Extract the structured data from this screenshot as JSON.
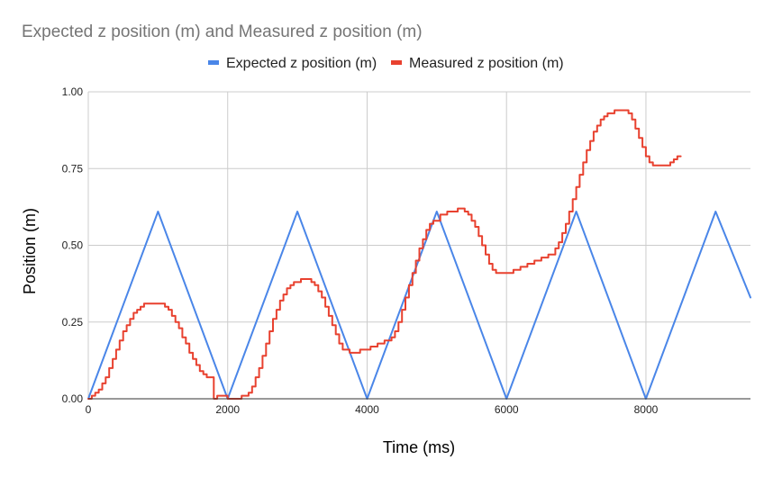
{
  "chart_data": {
    "type": "line",
    "title": "Expected z position (m) and Measured z position (m)",
    "xlabel": "Time (ms)",
    "ylabel": "Position (m)",
    "xlim": [
      0,
      9500
    ],
    "ylim": [
      0,
      1
    ],
    "x_ticks": [
      "0",
      "2000",
      "4000",
      "6000",
      "8000"
    ],
    "y_ticks": [
      "0.00",
      "0.25",
      "0.50",
      "0.75",
      "1.00"
    ],
    "grid": true,
    "legend_position": "top",
    "series": [
      {
        "name": "Expected z position (m)",
        "color": "#4a86e8",
        "step": false,
        "points": [
          [
            0,
            0
          ],
          [
            1000,
            0.61
          ],
          [
            2000,
            0
          ],
          [
            3000,
            0.61
          ],
          [
            4000,
            0
          ],
          [
            5000,
            0.61
          ],
          [
            6000,
            0
          ],
          [
            7000,
            0.61
          ],
          [
            8000,
            0
          ],
          [
            9000,
            0.61
          ],
          [
            9500,
            0.33
          ]
        ]
      },
      {
        "name": "Measured z position (m)",
        "color": "#e8412f",
        "step": true,
        "points": [
          [
            0,
            0.0
          ],
          [
            50,
            0.01
          ],
          [
            100,
            0.02
          ],
          [
            150,
            0.03
          ],
          [
            200,
            0.05
          ],
          [
            250,
            0.07
          ],
          [
            300,
            0.1
          ],
          [
            350,
            0.13
          ],
          [
            400,
            0.16
          ],
          [
            450,
            0.19
          ],
          [
            500,
            0.22
          ],
          [
            550,
            0.24
          ],
          [
            600,
            0.26
          ],
          [
            650,
            0.28
          ],
          [
            700,
            0.29
          ],
          [
            750,
            0.3
          ],
          [
            800,
            0.31
          ],
          [
            1050,
            0.31
          ],
          [
            1100,
            0.3
          ],
          [
            1150,
            0.29
          ],
          [
            1200,
            0.27
          ],
          [
            1250,
            0.25
          ],
          [
            1300,
            0.23
          ],
          [
            1350,
            0.2
          ],
          [
            1400,
            0.18
          ],
          [
            1450,
            0.15
          ],
          [
            1500,
            0.13
          ],
          [
            1550,
            0.11
          ],
          [
            1600,
            0.09
          ],
          [
            1650,
            0.08
          ],
          [
            1700,
            0.07
          ],
          [
            1800,
            0.07
          ],
          [
            1800,
            0.0
          ],
          [
            1850,
            0.01
          ],
          [
            1950,
            0.01
          ],
          [
            2000,
            0.0
          ],
          [
            2200,
            0.0
          ],
          [
            2200,
            0.01
          ],
          [
            2300,
            0.02
          ],
          [
            2350,
            0.04
          ],
          [
            2400,
            0.07
          ],
          [
            2450,
            0.1
          ],
          [
            2500,
            0.14
          ],
          [
            2550,
            0.18
          ],
          [
            2600,
            0.22
          ],
          [
            2650,
            0.26
          ],
          [
            2700,
            0.29
          ],
          [
            2750,
            0.32
          ],
          [
            2800,
            0.34
          ],
          [
            2850,
            0.36
          ],
          [
            2900,
            0.37
          ],
          [
            2950,
            0.38
          ],
          [
            3050,
            0.39
          ],
          [
            3150,
            0.39
          ],
          [
            3200,
            0.38
          ],
          [
            3250,
            0.37
          ],
          [
            3300,
            0.35
          ],
          [
            3350,
            0.33
          ],
          [
            3400,
            0.3
          ],
          [
            3450,
            0.27
          ],
          [
            3500,
            0.24
          ],
          [
            3550,
            0.21
          ],
          [
            3600,
            0.18
          ],
          [
            3650,
            0.16
          ],
          [
            3750,
            0.15
          ],
          [
            3900,
            0.16
          ],
          [
            4050,
            0.17
          ],
          [
            4150,
            0.18
          ],
          [
            4250,
            0.19
          ],
          [
            4350,
            0.2
          ],
          [
            4400,
            0.22
          ],
          [
            4450,
            0.25
          ],
          [
            4500,
            0.29
          ],
          [
            4550,
            0.33
          ],
          [
            4600,
            0.37
          ],
          [
            4650,
            0.41
          ],
          [
            4700,
            0.45
          ],
          [
            4750,
            0.49
          ],
          [
            4800,
            0.52
          ],
          [
            4850,
            0.55
          ],
          [
            4900,
            0.57
          ],
          [
            4950,
            0.58
          ],
          [
            5050,
            0.6
          ],
          [
            5150,
            0.61
          ],
          [
            5300,
            0.62
          ],
          [
            5400,
            0.61
          ],
          [
            5450,
            0.6
          ],
          [
            5500,
            0.58
          ],
          [
            5550,
            0.56
          ],
          [
            5600,
            0.53
          ],
          [
            5650,
            0.5
          ],
          [
            5700,
            0.47
          ],
          [
            5750,
            0.44
          ],
          [
            5800,
            0.42
          ],
          [
            5850,
            0.41
          ],
          [
            6000,
            0.41
          ],
          [
            6100,
            0.42
          ],
          [
            6200,
            0.43
          ],
          [
            6300,
            0.44
          ],
          [
            6400,
            0.45
          ],
          [
            6500,
            0.46
          ],
          [
            6600,
            0.47
          ],
          [
            6700,
            0.49
          ],
          [
            6750,
            0.51
          ],
          [
            6800,
            0.54
          ],
          [
            6850,
            0.57
          ],
          [
            6900,
            0.61
          ],
          [
            6950,
            0.65
          ],
          [
            7000,
            0.69
          ],
          [
            7050,
            0.73
          ],
          [
            7100,
            0.77
          ],
          [
            7150,
            0.81
          ],
          [
            7200,
            0.84
          ],
          [
            7250,
            0.87
          ],
          [
            7300,
            0.89
          ],
          [
            7350,
            0.91
          ],
          [
            7400,
            0.92
          ],
          [
            7450,
            0.93
          ],
          [
            7550,
            0.94
          ],
          [
            7700,
            0.94
          ],
          [
            7750,
            0.93
          ],
          [
            7800,
            0.91
          ],
          [
            7850,
            0.88
          ],
          [
            7900,
            0.85
          ],
          [
            7950,
            0.82
          ],
          [
            8000,
            0.79
          ],
          [
            8050,
            0.77
          ],
          [
            8100,
            0.76
          ],
          [
            8300,
            0.76
          ],
          [
            8350,
            0.77
          ],
          [
            8400,
            0.78
          ],
          [
            8450,
            0.79
          ],
          [
            8500,
            0.79
          ]
        ]
      }
    ]
  }
}
